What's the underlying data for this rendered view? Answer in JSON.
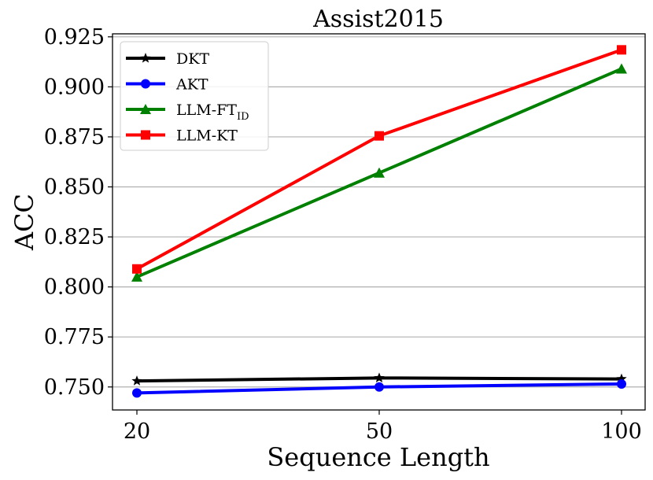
{
  "chart_data": {
    "type": "line",
    "title": "Assist2015",
    "xlabel": "Sequence Length",
    "ylabel": "ACC",
    "x": [
      "20",
      "50",
      "100"
    ],
    "ylim": [
      0.7385,
      0.9265
    ],
    "yticks": [
      "0.750",
      "0.775",
      "0.800",
      "0.825",
      "0.850",
      "0.875",
      "0.900",
      "0.925"
    ],
    "grid": "horizontal",
    "legend_position": "upper-left",
    "series": [
      {
        "name": "DKT",
        "values": [
          0.753,
          0.7545,
          0.754
        ],
        "color": "#000000",
        "marker": "star"
      },
      {
        "name": "AKT",
        "values": [
          0.747,
          0.75,
          0.7515
        ],
        "color": "#0000ff",
        "marker": "circle"
      },
      {
        "name": "LLM-FT",
        "name_subscript": "ID",
        "values": [
          0.805,
          0.857,
          0.909
        ],
        "color": "#008000",
        "marker": "triangle"
      },
      {
        "name": "LLM-KT",
        "values": [
          0.809,
          0.8755,
          0.9185
        ],
        "color": "#ff0000",
        "marker": "square"
      }
    ]
  }
}
